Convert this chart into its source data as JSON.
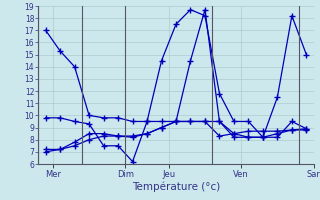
{
  "xlabel": "Température (°c)",
  "background_color": "#cce8ec",
  "grid_color": "#aacccc",
  "line_color": "#0000bb",
  "vline_color": "#555566",
  "ylim": [
    6,
    19
  ],
  "yticks": [
    6,
    7,
    8,
    9,
    10,
    11,
    12,
    13,
    14,
    15,
    16,
    17,
    18,
    19
  ],
  "day_labels": [
    "Mer",
    "Dim",
    "Jeu",
    "Ven",
    "Sar"
  ],
  "day_tick_positions": [
    0.5,
    5.5,
    8.5,
    13.5,
    18.5
  ],
  "vline_positions": [
    0,
    3,
    6,
    12,
    18
  ],
  "series": [
    [
      17.0,
      15.3,
      14.0,
      10.0,
      9.8,
      9.8,
      9.5,
      9.5,
      9.5,
      9.5,
      9.5,
      9.5,
      8.3,
      8.5,
      8.7,
      8.7,
      8.7,
      8.8,
      8.8
    ],
    [
      9.8,
      9.8,
      9.5,
      9.3,
      7.5,
      7.5,
      6.2,
      9.5,
      14.5,
      17.5,
      18.7,
      18.2,
      11.8,
      9.5,
      9.5,
      8.2,
      8.2,
      9.5,
      8.9
    ],
    [
      7.2,
      7.2,
      7.5,
      8.0,
      8.3,
      8.3,
      8.3,
      8.5,
      9.0,
      9.5,
      14.5,
      18.7,
      9.5,
      8.2,
      8.2,
      8.2,
      11.5,
      18.2,
      15.0
    ],
    [
      7.0,
      7.2,
      7.8,
      8.5,
      8.5,
      8.3,
      8.2,
      8.5,
      9.0,
      9.5,
      9.5,
      9.5,
      9.5,
      8.5,
      8.2,
      8.2,
      8.5,
      8.8,
      8.9
    ]
  ],
  "num_points": 19
}
